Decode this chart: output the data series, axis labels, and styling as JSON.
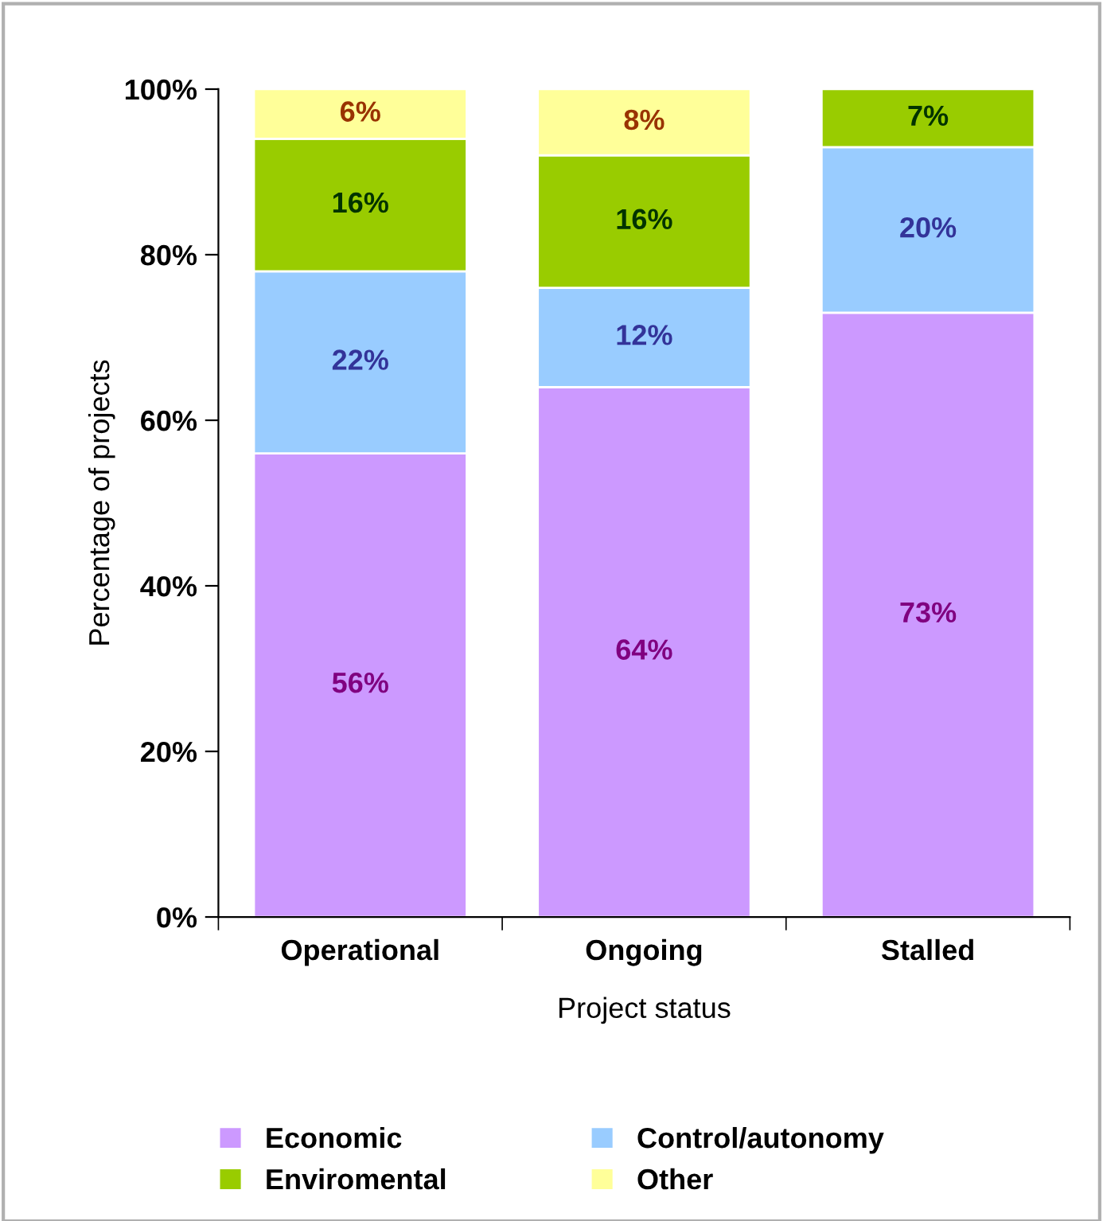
{
  "chart_data": {
    "type": "bar",
    "stacked": true,
    "xlabel": "Project status",
    "ylabel": "Percentage of projects",
    "categories": [
      "Operational",
      "Ongoing",
      "Stalled"
    ],
    "series": [
      {
        "name": "Economic",
        "color": "#cc99ff",
        "values": [
          56,
          64,
          73
        ],
        "value_labels": [
          "56%",
          "64%",
          "73%"
        ]
      },
      {
        "name": "Control/autonomy",
        "color": "#99ccff",
        "values": [
          22,
          12,
          20
        ],
        "value_labels": [
          "22%",
          "12%",
          "20%"
        ]
      },
      {
        "name": "Enviromental",
        "color": "#99cc00",
        "values": [
          16,
          16,
          7
        ],
        "value_labels": [
          "16%",
          "16%",
          "7%"
        ]
      },
      {
        "name": "Other",
        "color": "#ffff99",
        "values": [
          6,
          8,
          null
        ],
        "value_labels": [
          "6%",
          "8%",
          null
        ]
      }
    ],
    "ylim": [
      0,
      100
    ],
    "yticks": [
      {
        "value": 0,
        "label": "0%"
      },
      {
        "value": 20,
        "label": "20%"
      },
      {
        "value": 40,
        "label": "40%"
      },
      {
        "value": 60,
        "label": "60%"
      },
      {
        "value": 80,
        "label": "80%"
      },
      {
        "value": 100,
        "label": "100%"
      }
    ],
    "grid": false,
    "legend": "bottom"
  }
}
